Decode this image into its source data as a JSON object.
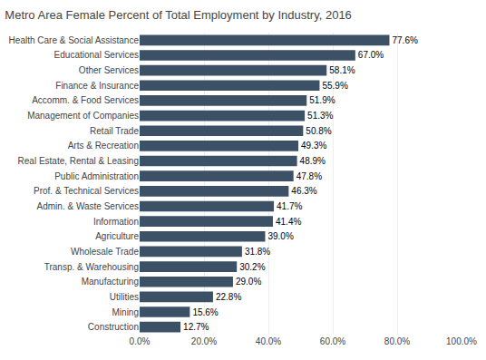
{
  "chart_data": {
    "type": "bar",
    "orientation": "horizontal",
    "title": "Metro Area Female Percent of Total Employment by Industry, 2016",
    "categories": [
      "Construction",
      "Mining",
      "Utilities",
      "Manufacturing",
      "Transp. & Warehousing",
      "Wholesale Trade",
      "Agriculture",
      "Information",
      "Admin. & Waste Services",
      "Prof. & Technical Services",
      "Public Administration",
      "Real Estate, Rental & Leasing",
      "Arts & Recreation",
      "Retail Trade",
      "Management of Companies",
      "Accomm. & Food Services",
      "Finance & Insurance",
      "Other Services",
      "Educational Services",
      "Health Care & Social Assistance"
    ],
    "values": [
      12.7,
      15.6,
      22.8,
      29.0,
      30.2,
      31.8,
      39.0,
      41.4,
      41.7,
      46.3,
      47.8,
      48.9,
      49.3,
      50.8,
      51.3,
      51.9,
      55.9,
      58.1,
      67.0,
      77.6
    ],
    "value_labels": [
      "12.7%",
      "15.6%",
      "22.8%",
      "29.0%",
      "30.2%",
      "31.8%",
      "39.0%",
      "41.4%",
      "41.7%",
      "46.3%",
      "47.8%",
      "48.9%",
      "49.3%",
      "50.8%",
      "51.3%",
      "51.9%",
      "55.9%",
      "58.1%",
      "67.0%",
      "77.6%"
    ],
    "data_labels": true,
    "color": "#3d5166",
    "xlim": [
      0,
      100
    ],
    "xticks": [
      {
        "value": 0,
        "label": "0.0%"
      },
      {
        "value": 20,
        "label": "20.0%"
      },
      {
        "value": 40,
        "label": "40.0%"
      },
      {
        "value": 60,
        "label": "60.0%"
      },
      {
        "value": 80,
        "label": "80.0%"
      },
      {
        "value": 100,
        "label": "100.0%"
      }
    ],
    "grid": true
  }
}
